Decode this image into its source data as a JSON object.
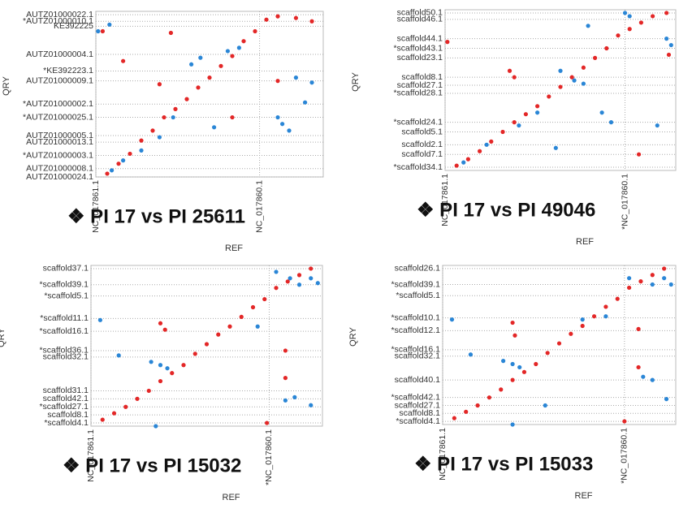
{
  "chart_data": [
    {
      "type": "scatter",
      "title": "❖ PI 17 vs PI 25611",
      "xlabel": "REF",
      "ylabel": "QRY",
      "grid": true,
      "xlim": [
        0,
        100
      ],
      "ylim": [
        0,
        100
      ],
      "xticks": [
        {
          "value": 0,
          "label": "NC_017861.1"
        },
        {
          "value": 72,
          "label": "NC_017860.1"
        }
      ],
      "yticks": [
        {
          "value": 98,
          "label": "AUTZ01000022.1"
        },
        {
          "value": 94,
          "label": "*AUTZ01000010.1"
        },
        {
          "value": 91,
          "label": "KE392225"
        },
        {
          "value": 74,
          "label": "AUTZ01000004.1"
        },
        {
          "value": 64,
          "label": "*KE392223.1"
        },
        {
          "value": 58,
          "label": "AUTZ01000009.1"
        },
        {
          "value": 44,
          "label": "*AUTZ01000002.1"
        },
        {
          "value": 36,
          "label": "*AUTZ01000025.1"
        },
        {
          "value": 25,
          "label": "AUTZ01000005.1"
        },
        {
          "value": 21,
          "label": "AUTZ01000013.1"
        },
        {
          "value": 13,
          "label": "*AUTZ01000003.1"
        },
        {
          "value": 5,
          "label": "AUTZ01000008.1"
        },
        {
          "value": 0,
          "label": "AUTZ01000024.1"
        }
      ],
      "series": [
        {
          "color": "#e32727",
          "x": [
            5,
            10,
            15,
            20,
            25,
            30,
            35,
            40,
            45,
            50,
            55,
            60,
            65,
            70,
            75,
            80,
            88,
            95,
            3,
            33,
            12,
            80,
            60,
            28
          ],
          "values": [
            2,
            8,
            14,
            22,
            28,
            36,
            41,
            47,
            54,
            60,
            67,
            73,
            82,
            88,
            95,
            97,
            96,
            94,
            88,
            87,
            70,
            58,
            36,
            56
          ]
        },
        {
          "color": "#2a86d6",
          "x": [
            7,
            12,
            20,
            28,
            34,
            42,
            46,
            52,
            58,
            63,
            80,
            82,
            85,
            88,
            92,
            95,
            6,
            1
          ],
          "values": [
            4,
            10,
            16,
            24,
            36,
            68,
            72,
            30,
            76,
            78,
            36,
            32,
            28,
            60,
            45,
            57,
            92,
            88
          ]
        }
      ]
    },
    {
      "type": "scatter",
      "title": "❖ PI 17 vs PI 49046",
      "xlabel": "REF",
      "ylabel": "QRY",
      "grid": true,
      "xlim": [
        0,
        100
      ],
      "ylim": [
        0,
        100
      ],
      "xticks": [
        {
          "value": 0,
          "label": "NC_017861.1"
        },
        {
          "value": 78,
          "label": "*NC_017860.1"
        }
      ],
      "yticks": [
        {
          "value": 98,
          "label": "scaffold50.1"
        },
        {
          "value": 94,
          "label": "scaffold46.1"
        },
        {
          "value": 82,
          "label": "scaffold44.1"
        },
        {
          "value": 76,
          "label": "*scaffold43.1"
        },
        {
          "value": 70,
          "label": "scaffold23.1"
        },
        {
          "value": 58,
          "label": "scaffold8.1"
        },
        {
          "value": 53,
          "label": "scaffold27.1"
        },
        {
          "value": 48,
          "label": "*scaffold28.1"
        },
        {
          "value": 30,
          "label": "*scaffold24.1"
        },
        {
          "value": 24,
          "label": "scaffold5.1"
        },
        {
          "value": 16,
          "label": "scaffold2.1"
        },
        {
          "value": 10,
          "label": "scaffold7.1"
        },
        {
          "value": 2,
          "label": "*scaffold34.1"
        }
      ],
      "series": [
        {
          "color": "#e32727",
          "x": [
            5,
            10,
            15,
            20,
            25,
            30,
            35,
            40,
            45,
            50,
            55,
            60,
            65,
            70,
            75,
            80,
            85,
            90,
            96,
            28,
            30,
            1,
            97,
            84
          ],
          "values": [
            3,
            7,
            12,
            18,
            24,
            30,
            35,
            40,
            46,
            52,
            58,
            64,
            70,
            76,
            84,
            88,
            92,
            96,
            98,
            62,
            58,
            80,
            72,
            10
          ]
        },
        {
          "color": "#2a86d6",
          "x": [
            8,
            18,
            32,
            40,
            50,
            56,
            60,
            68,
            72,
            78,
            80,
            92,
            96,
            98,
            62,
            48
          ],
          "values": [
            5,
            16,
            28,
            36,
            62,
            56,
            54,
            36,
            30,
            98,
            96,
            28,
            82,
            78,
            90,
            14
          ]
        }
      ]
    },
    {
      "type": "scatter",
      "title": "❖ PI 17 vs PI 15032",
      "xlabel": "REF",
      "ylabel": "QRY",
      "grid": true,
      "xlim": [
        0,
        100
      ],
      "ylim": [
        0,
        100
      ],
      "xticks": [
        {
          "value": 0,
          "label": "NC_017861.1"
        },
        {
          "value": 77,
          "label": "*NC_017860.1"
        }
      ],
      "yticks": [
        {
          "value": 98,
          "label": "scaffold37.1"
        },
        {
          "value": 88,
          "label": "*scaffold39.1"
        },
        {
          "value": 81,
          "label": "*scaffold5.1"
        },
        {
          "value": 67,
          "label": "*scaffold11.1"
        },
        {
          "value": 59,
          "label": "*scaffold16.1"
        },
        {
          "value": 47,
          "label": "*scaffold36.1"
        },
        {
          "value": 43,
          "label": "scaffold32.1"
        },
        {
          "value": 22,
          "label": "scaffold31.1"
        },
        {
          "value": 17,
          "label": "scaffold42.1"
        },
        {
          "value": 12,
          "label": "*scaffold27.1"
        },
        {
          "value": 7,
          "label": "scaffold8.1"
        },
        {
          "value": 2,
          "label": "*scaffold4.1"
        }
      ],
      "series": [
        {
          "color": "#e32727",
          "x": [
            5,
            10,
            15,
            20,
            25,
            30,
            35,
            40,
            45,
            50,
            55,
            60,
            65,
            70,
            75,
            80,
            85,
            90,
            95,
            30,
            32,
            84,
            84,
            76
          ],
          "values": [
            4,
            8,
            12,
            17,
            22,
            28,
            33,
            38,
            45,
            51,
            57,
            62,
            68,
            74,
            79,
            86,
            90,
            94,
            98,
            64,
            60,
            47,
            30,
            2
          ]
        },
        {
          "color": "#2a86d6",
          "x": [
            4,
            12,
            26,
            30,
            33,
            80,
            86,
            90,
            95,
            98,
            84,
            88,
            95,
            72,
            28
          ],
          "values": [
            66,
            44,
            40,
            38,
            36,
            96,
            92,
            88,
            92,
            89,
            16,
            18,
            13,
            62,
            0
          ]
        }
      ]
    },
    {
      "type": "scatter",
      "title": "❖ PI 17 vs PI 15033",
      "xlabel": "REF",
      "ylabel": "QRY",
      "grid": true,
      "xlim": [
        0,
        100
      ],
      "ylim": [
        0,
        100
      ],
      "xticks": [
        {
          "value": 0,
          "label": "NC_017861.1"
        },
        {
          "value": 78,
          "label": "*NC_017860.1"
        }
      ],
      "yticks": [
        {
          "value": 98,
          "label": "scaffold26.1"
        },
        {
          "value": 88,
          "label": "*scaffold39.1"
        },
        {
          "value": 81,
          "label": "*scaffold5.1"
        },
        {
          "value": 67,
          "label": "*scaffold10.1"
        },
        {
          "value": 59,
          "label": "*scaffold12.1"
        },
        {
          "value": 47,
          "label": "*scaffold16.1"
        },
        {
          "value": 43,
          "label": "scaffold32.1"
        },
        {
          "value": 28,
          "label": "scaffold40.1"
        },
        {
          "value": 17,
          "label": "*scaffold42.1"
        },
        {
          "value": 12,
          "label": "scaffold27.1"
        },
        {
          "value": 7,
          "label": "scaffold8.1"
        },
        {
          "value": 2,
          "label": "*scaffold4.1"
        }
      ],
      "series": [
        {
          "color": "#e32727",
          "x": [
            5,
            10,
            15,
            20,
            25,
            30,
            35,
            40,
            45,
            50,
            55,
            60,
            65,
            70,
            75,
            80,
            85,
            90,
            95,
            30,
            31,
            84,
            84,
            78
          ],
          "values": [
            4,
            8,
            12,
            17,
            22,
            28,
            33,
            38,
            45,
            51,
            57,
            62,
            68,
            74,
            79,
            86,
            90,
            94,
            98,
            64,
            56,
            60,
            36,
            2
          ]
        },
        {
          "color": "#2a86d6",
          "x": [
            4,
            12,
            26,
            30,
            33,
            60,
            70,
            80,
            90,
            95,
            98,
            86,
            90,
            96,
            44,
            30
          ],
          "values": [
            66,
            44,
            40,
            38,
            36,
            66,
            68,
            92,
            88,
            92,
            88,
            30,
            28,
            16,
            12,
            0
          ]
        }
      ]
    }
  ]
}
